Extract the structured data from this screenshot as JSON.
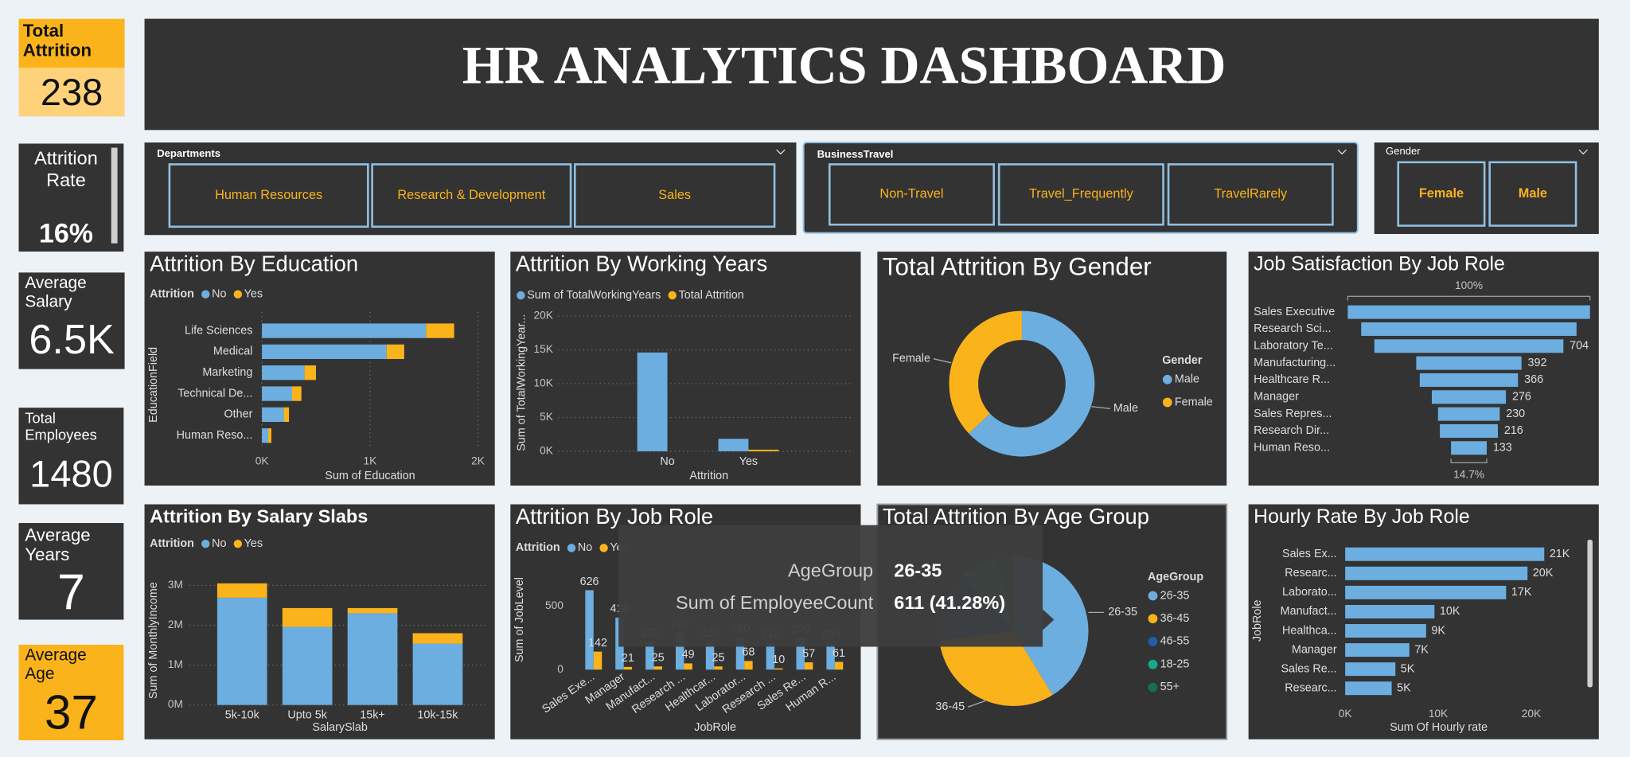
{
  "header": {
    "title": "HR ANALYTICS DASHBOARD"
  },
  "kpis": [
    {
      "label": "Total Attrition",
      "value": "238"
    },
    {
      "label": "Attrition Rate",
      "value": "16%"
    },
    {
      "label": "Average Salary",
      "value": "6.5K"
    },
    {
      "label": "Total Employees",
      "value": "1480"
    },
    {
      "label": "Average Years",
      "value": "7"
    },
    {
      "label": "Average Age",
      "value": "37"
    }
  ],
  "slicers": [
    {
      "title": "Departments",
      "options": [
        "Human Resources",
        "Research & Development",
        "Sales"
      ]
    },
    {
      "title": "BusinessTravel",
      "options": [
        "Non-Travel",
        "Travel_Frequently",
        "TravelRarely"
      ]
    },
    {
      "title": "Gender",
      "options": [
        "Female",
        "Male"
      ]
    }
  ],
  "chart_data": [
    {
      "type": "bar",
      "horizontal": true,
      "stacked": true,
      "title": "Attrition By Education",
      "legend_title": "Attrition",
      "x_label": "Sum of Education",
      "y_label": "EducationField",
      "categories": [
        "Life Sciences",
        "Medical",
        "Marketing",
        "Technical De...",
        "Other",
        "Human Reso..."
      ],
      "series": [
        {
          "name": "No",
          "color": "#6caee0",
          "values": [
            1519,
            1154,
            394,
            279,
            202,
            58
          ]
        },
        {
          "name": "Yes",
          "color": "#fbb31b",
          "values": [
            260,
            163,
            106,
            86,
            48,
            29
          ]
        }
      ],
      "xlim": [
        0,
        2050
      ],
      "xticks": [
        {
          "value": 0,
          "label": "0K"
        },
        {
          "value": 1000,
          "label": "1K"
        },
        {
          "value": 2000,
          "label": "2K"
        }
      ],
      "grid": true
    },
    {
      "type": "bar",
      "horizontal": false,
      "stacked": false,
      "title": "Attrition By Working Years",
      "x_label": "Attrition",
      "y_label": "Sum of TotalWorkingYear...",
      "categories": [
        "No",
        "Yes"
      ],
      "series": [
        {
          "name": "Sum of TotalWorkingYears",
          "color": "#6caee0",
          "values": [
            14615,
            1846
          ]
        },
        {
          "name": "Total Attrition",
          "color": "#fbb31b",
          "values": [
            0,
            238
          ]
        }
      ],
      "ylim": [
        0,
        20000
      ],
      "yticks": [
        {
          "value": 0,
          "label": "0K"
        },
        {
          "value": 5000,
          "label": "5K"
        },
        {
          "value": 10000,
          "label": "10K"
        },
        {
          "value": 15000,
          "label": "15K"
        },
        {
          "value": 20000,
          "label": "20K"
        }
      ],
      "grid": true
    },
    {
      "type": "donut",
      "title": "Total Attrition By Gender",
      "legend_title": "Gender",
      "categories": [
        "Male",
        "Female"
      ],
      "values": [
        150,
        88
      ],
      "colors": [
        "#6caee0",
        "#fbb31b"
      ]
    },
    {
      "type": "funnel",
      "title": "Job Satisfaction By Job Role",
      "top_label": "100%",
      "bottom_label": "14.7%",
      "categories": [
        "Sales Executive",
        "Research Sci...",
        "Laboratory Te...",
        "Manufacturing...",
        "Healthcare R...",
        "Manager",
        "Sales Repres...",
        "Research Dir...",
        "Human Reso..."
      ],
      "values": [
        902,
        802,
        704,
        392,
        366,
        276,
        230,
        216,
        133
      ],
      "value_labels": [
        null,
        null,
        "704",
        "392",
        "366",
        "276",
        "230",
        "216",
        "133"
      ],
      "color": "#6caee0"
    },
    {
      "type": "bar",
      "horizontal": false,
      "stacked": true,
      "title": "Attrition By Salary Slabs",
      "legend_title": "Attrition",
      "x_label": "SalarySlab",
      "y_label": "Sum of MonthlyIncome",
      "categories": [
        "5k-10k",
        "Upto 5k",
        "15k+",
        "10k-15k"
      ],
      "series": [
        {
          "name": "No",
          "color": "#6caee0",
          "values": [
            2690000,
            1960000,
            2300000,
            1540000
          ]
        },
        {
          "name": "Yes",
          "color": "#fbb31b",
          "values": [
            360000,
            470000,
            130000,
            260000
          ]
        }
      ],
      "ylim": [
        0,
        3200000
      ],
      "yticks": [
        {
          "value": 0,
          "label": "0M"
        },
        {
          "value": 1000000,
          "label": "1M"
        },
        {
          "value": 2000000,
          "label": "2M"
        },
        {
          "value": 3000000,
          "label": "3M"
        }
      ],
      "grid": true
    },
    {
      "type": "bar",
      "horizontal": false,
      "stacked": false,
      "data_labels": true,
      "title": "Attrition By Job Role",
      "legend_title": "Attrition",
      "x_label": "JobRole",
      "y_label": "Sum of JobLevel",
      "categories": [
        "Sales Exe...",
        "Manager",
        "Manufact...",
        "Research ...",
        "Healthcar...",
        "Laborator...",
        "Research ...",
        "Sales Re...",
        "Human R..."
      ],
      "series": [
        {
          "name": "No",
          "color": "#6caee0",
          "values": [
            626,
            410,
            220,
            290,
            220,
            250,
            210,
            250,
            200
          ]
        },
        {
          "name": "Yes",
          "color": "#fbb31b",
          "values": [
            142,
            21,
            25,
            49,
            25,
            68,
            10,
            57,
            61
          ]
        }
      ],
      "ylim": [
        0,
        750
      ],
      "yticks": [
        0,
        500
      ],
      "grid": false
    },
    {
      "type": "pie",
      "title": "Total Attrition By Age Group",
      "legend_title": "AgeGroup",
      "categories": [
        "26-35",
        "36-45",
        "46-55",
        "18-25",
        "55+"
      ],
      "values": [
        611,
        468,
        226,
        123,
        52
      ],
      "colors": [
        "#6caee0",
        "#fbb31b",
        "#1f5fa8",
        "#18a989",
        "#11705c"
      ]
    },
    {
      "type": "bar",
      "horizontal": true,
      "stacked": false,
      "title": "Hourly Rate By Job Role",
      "x_label": "Sum Of Hourly rate",
      "y_label": "JobRole",
      "categories": [
        "Sales Ex...",
        "Researc...",
        "Laborato...",
        "Manufact...",
        "Healthca...",
        "Manager",
        "Sales Re...",
        "Researc..."
      ],
      "values": [
        21400,
        19600,
        17300,
        9600,
        8700,
        6900,
        5400,
        5000
      ],
      "value_labels": [
        "21K",
        "20K",
        "17K",
        "10K",
        "9K",
        "7K",
        "5K",
        "5K"
      ],
      "color": "#6caee0",
      "xlim": [
        0,
        24000
      ],
      "xticks": [
        {
          "value": 0,
          "label": "0K"
        },
        {
          "value": 10000,
          "label": "10K"
        },
        {
          "value": 20000,
          "label": "20K"
        }
      ],
      "grid": false
    }
  ],
  "tooltip": {
    "rows": [
      {
        "label": "AgeGroup",
        "value": "26-35"
      },
      {
        "label": "Sum of EmployeeCount",
        "value": "611 (41.28%)"
      }
    ]
  }
}
